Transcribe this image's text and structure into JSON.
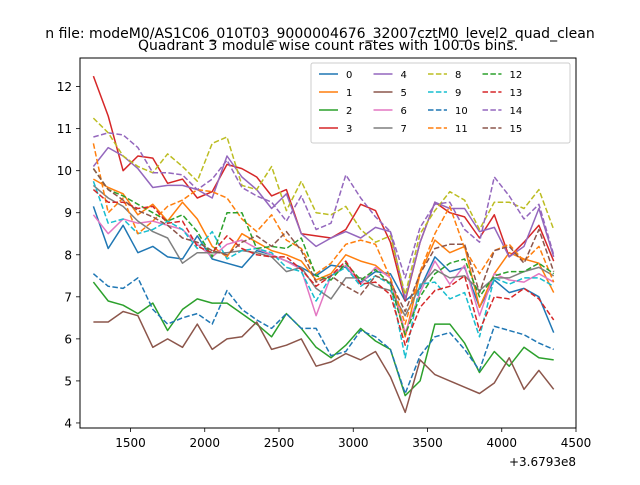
{
  "figure": {
    "suptitle": "n file: modeM0/AS1C06_010T03_9000004676_32007cztM0_level2_quad_clean",
    "title": "Quadrant 3 module wise count rates with 100.0s bins."
  },
  "chart_data": {
    "type": "line",
    "title": "Quadrant 3 module wise count rates with 100.0s bins.",
    "xlabel": "",
    "ylabel": "",
    "x_offset_label": "+3.6793e8",
    "xlim": [
      1160,
      4500
    ],
    "ylim": [
      3.88,
      12.68
    ],
    "xticks": [
      1500,
      2000,
      2500,
      3000,
      3500,
      4000,
      4500
    ],
    "xtick_labels": [
      "1500",
      "2000",
      "2500",
      "3000",
      "3500",
      "4000",
      "4500"
    ],
    "yticks": [
      4,
      5,
      6,
      7,
      8,
      9,
      10,
      11,
      12
    ],
    "ytick_labels": [
      "4",
      "5",
      "6",
      "7",
      "8",
      "9",
      "10",
      "11",
      "12"
    ],
    "grid": false,
    "legend_position": "top-right",
    "legend_columns": 4,
    "x": [
      1250,
      1350,
      1450,
      1550,
      1650,
      1750,
      1850,
      1950,
      2050,
      2150,
      2250,
      2350,
      2450,
      2550,
      2650,
      2750,
      2850,
      2950,
      3050,
      3150,
      3250,
      3350,
      3450,
      3550,
      3650,
      3750,
      3850,
      3950,
      4050,
      4150,
      4250,
      4350
    ],
    "series": [
      {
        "name": "0",
        "color": "#1f77b4",
        "dash": "solid",
        "values": [
          9.15,
          8.15,
          8.7,
          8.05,
          8.2,
          7.95,
          7.9,
          8.45,
          7.9,
          7.8,
          7.7,
          8.1,
          8.0,
          7.85,
          7.7,
          7.5,
          7.75,
          7.7,
          7.35,
          7.6,
          7.55,
          6.9,
          7.2,
          7.95,
          7.6,
          7.7,
          6.75,
          7.4,
          7.1,
          7.2,
          7.0,
          6.15
        ]
      },
      {
        "name": "1",
        "color": "#ff7f0e",
        "dash": "solid",
        "values": [
          9.8,
          9.6,
          9.45,
          8.95,
          9.2,
          8.8,
          9.25,
          8.85,
          8.2,
          7.95,
          8.5,
          8.3,
          8.1,
          8.0,
          7.85,
          7.4,
          7.55,
          8.0,
          7.85,
          7.75,
          7.45,
          6.05,
          7.55,
          8.35,
          8.05,
          8.2,
          6.75,
          7.55,
          8.05,
          7.9,
          7.8,
          7.1
        ]
      },
      {
        "name": "2",
        "color": "#2ca02c",
        "dash": "solid",
        "values": [
          7.35,
          6.9,
          6.8,
          6.6,
          6.85,
          6.2,
          6.7,
          6.95,
          6.85,
          6.85,
          6.6,
          6.35,
          6.05,
          6.6,
          6.25,
          5.8,
          5.55,
          5.85,
          6.25,
          5.95,
          5.75,
          4.65,
          5.0,
          6.35,
          6.35,
          5.9,
          5.2,
          5.7,
          5.35,
          5.8,
          5.55,
          5.5
        ]
      },
      {
        "name": "3",
        "color": "#d62728",
        "dash": "solid",
        "values": [
          12.25,
          11.3,
          10.0,
          10.35,
          10.3,
          9.7,
          9.8,
          9.35,
          9.5,
          10.15,
          10.05,
          9.85,
          9.4,
          9.55,
          8.5,
          8.45,
          8.4,
          8.6,
          9.2,
          9.05,
          8.3,
          6.9,
          8.3,
          9.25,
          9.0,
          8.9,
          8.4,
          8.95,
          7.95,
          8.3,
          8.7,
          7.85
        ]
      },
      {
        "name": "4",
        "color": "#9467bd",
        "dash": "solid",
        "values": [
          10.1,
          10.55,
          10.35,
          10.05,
          9.6,
          9.65,
          9.65,
          9.55,
          9.35,
          10.35,
          9.85,
          9.55,
          9.1,
          9.45,
          8.5,
          8.2,
          8.4,
          8.55,
          8.4,
          8.65,
          8.55,
          6.95,
          8.3,
          9.25,
          9.1,
          9.1,
          8.55,
          8.65,
          7.95,
          8.2,
          9.1,
          7.95
        ]
      },
      {
        "name": "5",
        "color": "#8c564b",
        "dash": "solid",
        "values": [
          6.4,
          6.4,
          6.65,
          6.55,
          5.8,
          6.0,
          5.8,
          6.35,
          5.75,
          6.0,
          6.05,
          6.4,
          5.75,
          5.85,
          6.0,
          5.35,
          5.45,
          5.65,
          5.5,
          5.7,
          5.1,
          4.25,
          5.5,
          5.15,
          5.0,
          4.85,
          4.7,
          4.95,
          5.55,
          4.8,
          5.25,
          4.8
        ]
      },
      {
        "name": "6",
        "color": "#e377c2",
        "dash": "solid",
        "values": [
          8.95,
          8.5,
          8.85,
          8.75,
          8.8,
          8.7,
          8.6,
          8.25,
          7.95,
          8.25,
          8.35,
          8.15,
          8.0,
          7.85,
          7.65,
          6.55,
          7.5,
          7.75,
          7.3,
          7.7,
          7.45,
          6.15,
          7.1,
          7.85,
          7.3,
          7.75,
          6.55,
          7.55,
          7.4,
          7.35,
          7.55,
          7.35
        ]
      },
      {
        "name": "7",
        "color": "#7f7f7f",
        "dash": "solid",
        "values": [
          9.65,
          9.35,
          9.15,
          8.8,
          8.55,
          8.4,
          7.8,
          8.05,
          8.05,
          8.05,
          8.1,
          8.05,
          7.95,
          7.6,
          7.7,
          7.2,
          6.95,
          7.45,
          7.45,
          7.25,
          7.15,
          6.55,
          7.25,
          7.65,
          7.45,
          7.5,
          7.15,
          7.45,
          7.45,
          7.6,
          7.7,
          7.5
        ]
      },
      {
        "name": "8",
        "color": "#bcbd22",
        "dash": "dashed",
        "values": [
          11.25,
          10.9,
          10.35,
          10.1,
          9.95,
          10.4,
          10.1,
          9.75,
          10.65,
          10.8,
          9.65,
          9.55,
          10.1,
          9.05,
          9.75,
          9.0,
          8.95,
          9.15,
          8.6,
          8.3,
          8.45,
          7.05,
          8.5,
          9.05,
          9.5,
          9.3,
          8.6,
          9.25,
          9.25,
          9.1,
          9.55,
          8.6
        ]
      },
      {
        "name": "9",
        "color": "#17becf",
        "dash": "dashed",
        "values": [
          9.75,
          8.75,
          8.85,
          8.5,
          8.6,
          8.8,
          8.6,
          8.15,
          8.55,
          7.9,
          8.1,
          8.15,
          8.05,
          7.7,
          7.6,
          6.9,
          7.5,
          7.7,
          7.25,
          7.5,
          7.3,
          5.55,
          7.3,
          7.35,
          6.95,
          7.1,
          6.05,
          7.45,
          7.3,
          7.45,
          7.45,
          7.25
        ]
      },
      {
        "name": "10",
        "color": "#1f77b4",
        "dash": "dashed",
        "values": [
          7.55,
          7.25,
          7.2,
          7.45,
          6.7,
          6.35,
          6.5,
          6.6,
          6.35,
          7.15,
          6.7,
          6.45,
          6.25,
          6.6,
          6.25,
          6.25,
          5.6,
          5.7,
          6.2,
          6.05,
          5.75,
          4.7,
          5.6,
          6.05,
          6.15,
          5.75,
          5.25,
          6.3,
          6.2,
          6.1,
          5.9,
          5.75
        ]
      },
      {
        "name": "11",
        "color": "#ff7f0e",
        "dash": "dashed",
        "values": [
          10.65,
          9.0,
          9.35,
          8.5,
          8.8,
          9.15,
          9.3,
          9.55,
          9.5,
          9.35,
          8.85,
          8.55,
          8.95,
          8.35,
          8.15,
          7.55,
          7.8,
          8.25,
          8.35,
          8.25,
          7.45,
          6.35,
          7.6,
          8.5,
          9.15,
          8.15,
          7.55,
          8.1,
          8.25,
          7.85,
          8.2,
          7.35
        ]
      },
      {
        "name": "12",
        "color": "#2ca02c",
        "dash": "dashed",
        "values": [
          10.05,
          9.55,
          9.4,
          9.2,
          9.0,
          8.8,
          8.95,
          8.55,
          7.95,
          9.0,
          9.0,
          8.15,
          8.2,
          8.15,
          8.4,
          7.5,
          7.4,
          7.8,
          7.4,
          7.65,
          7.3,
          6.1,
          7.0,
          7.55,
          7.8,
          7.9,
          7.0,
          7.5,
          7.6,
          7.6,
          7.8,
          7.55
        ]
      },
      {
        "name": "13",
        "color": "#d62728",
        "dash": "dashed",
        "values": [
          9.55,
          9.25,
          9.25,
          9.1,
          9.15,
          8.75,
          8.8,
          8.2,
          8.05,
          8.45,
          8.15,
          8.0,
          7.95,
          7.95,
          7.65,
          7.25,
          7.5,
          7.85,
          7.3,
          7.35,
          7.05,
          5.85,
          6.75,
          7.15,
          7.25,
          7.5,
          6.2,
          7.0,
          6.95,
          7.2,
          6.95,
          6.45
        ]
      },
      {
        "name": "14",
        "color": "#9467bd",
        "dash": "dashed",
        "values": [
          10.8,
          10.9,
          10.85,
          10.55,
          9.95,
          9.95,
          9.9,
          9.55,
          9.8,
          10.25,
          9.6,
          9.4,
          9.25,
          8.8,
          9.4,
          8.6,
          8.75,
          9.9,
          9.35,
          8.9,
          8.55,
          7.45,
          8.65,
          9.2,
          9.25,
          8.6,
          8.3,
          9.85,
          9.4,
          8.85,
          9.2,
          8.0
        ]
      },
      {
        "name": "15",
        "color": "#8c564b",
        "dash": "dashed",
        "values": [
          10.05,
          9.55,
          9.3,
          9.05,
          8.9,
          8.7,
          8.4,
          8.3,
          8.1,
          8.0,
          8.3,
          8.45,
          8.2,
          8.55,
          8.1,
          7.35,
          7.5,
          7.25,
          7.05,
          7.5,
          7.35,
          6.65,
          7.55,
          8.15,
          8.25,
          8.25,
          7.1,
          8.1,
          8.2,
          7.8,
          8.6,
          7.6
        ]
      }
    ]
  }
}
